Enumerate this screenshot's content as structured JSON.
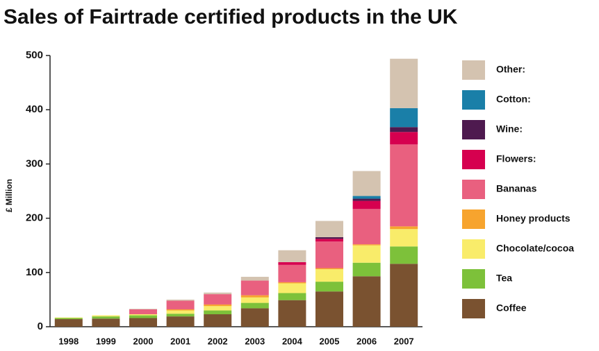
{
  "chart_data": {
    "type": "stacked-bar",
    "title": "Sales of Fairtrade certified products in the UK",
    "y_label": "£ Million",
    "categories": [
      "1998",
      "1999",
      "2000",
      "2001",
      "2002",
      "2003",
      "2004",
      "2005",
      "2006",
      "2007"
    ],
    "series": [
      {
        "name": "Coffee",
        "color": "#7a5230",
        "values": [
          14,
          15,
          16,
          19,
          23,
          34,
          49,
          65,
          93,
          116
        ]
      },
      {
        "name": "Tea",
        "color": "#7dc13a",
        "values": [
          2,
          4,
          5,
          5,
          7,
          10,
          13,
          18,
          25,
          32
        ]
      },
      {
        "name": "Chocolate/cocoa",
        "color": "#f9ec6a",
        "values": [
          1,
          2,
          2,
          6,
          8,
          10,
          18,
          23,
          32,
          32
        ]
      },
      {
        "name": "Honey products",
        "color": "#f7a42e",
        "values": [
          0,
          0,
          0,
          2,
          3,
          4,
          2,
          2,
          2,
          5
        ]
      },
      {
        "name": "Bananas",
        "color": "#e9607f",
        "values": [
          0,
          0,
          9,
          16,
          19,
          27,
          32,
          49,
          65,
          151
        ]
      },
      {
        "name": "Flowers:",
        "color": "#d6004f",
        "values": [
          0,
          0,
          0,
          0,
          0,
          0,
          5,
          5,
          15,
          23
        ]
      },
      {
        "name": "Wine:",
        "color": "#4e1a4f",
        "values": [
          0,
          0,
          0,
          0,
          0,
          0,
          0,
          3,
          4,
          9
        ]
      },
      {
        "name": "Cotton:",
        "color": "#1a7fa8",
        "values": [
          0,
          0,
          0,
          0,
          0,
          0,
          0,
          0,
          5,
          35
        ]
      },
      {
        "name": "Other:",
        "color": "#d4c3b0",
        "values": [
          0,
          0,
          1,
          2,
          3,
          7,
          22,
          30,
          46,
          91
        ]
      }
    ],
    "ylim": [
      0,
      500
    ],
    "yticks": [
      0,
      100,
      200,
      300,
      400,
      500
    ]
  }
}
